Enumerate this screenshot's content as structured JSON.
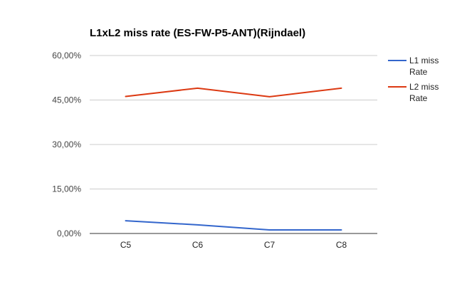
{
  "chart_data": {
    "type": "line",
    "title": "L1xL2 miss rate (ES-FW-P5-ANT)(Rijndael)",
    "categories": [
      "C5",
      "C6",
      "C7",
      "C8"
    ],
    "series": [
      {
        "name": "L1 miss Rate",
        "color": "#3366cc",
        "values": [
          4.3,
          2.9,
          1.2,
          1.2
        ]
      },
      {
        "name": "L2 miss Rate",
        "color": "#dc3912",
        "values": [
          46.2,
          49.0,
          46.1,
          49.0
        ]
      }
    ],
    "y_ticks": [
      "0,00%",
      "15,00%",
      "30,00%",
      "45,00%",
      "60,00%"
    ],
    "ylim": [
      0,
      60
    ],
    "xlabel": "",
    "ylabel": "",
    "grid": true,
    "legend_position": "right"
  }
}
